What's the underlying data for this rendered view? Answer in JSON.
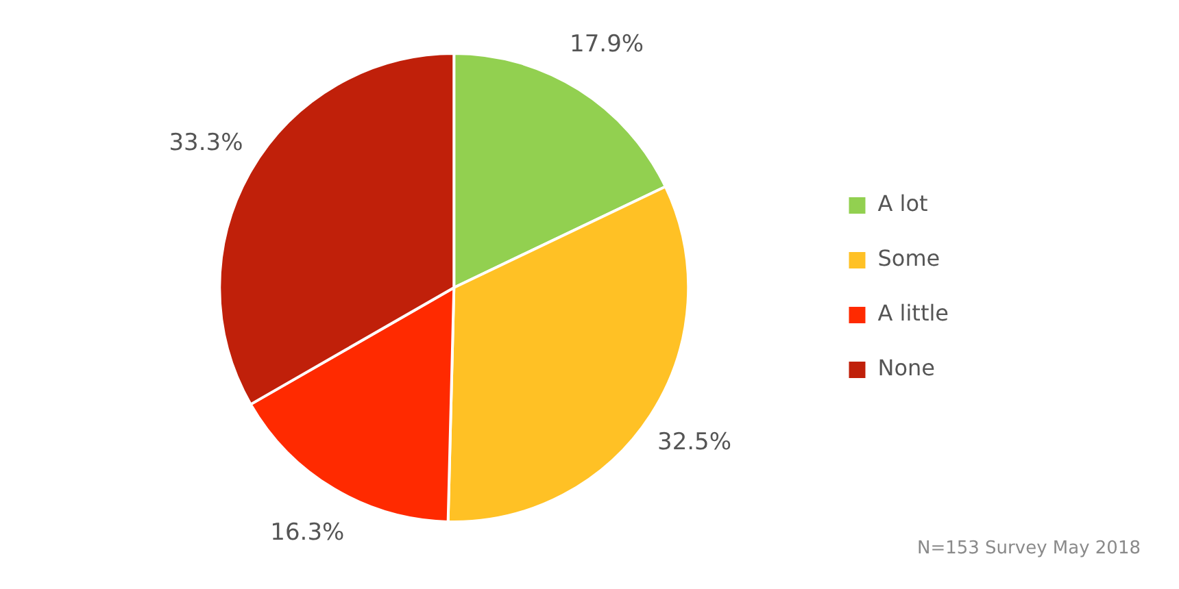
{
  "chart_data": {
    "type": "pie",
    "categories": [
      "A lot",
      "Some",
      "A little",
      "None"
    ],
    "values": [
      17.9,
      32.5,
      16.3,
      33.3
    ],
    "value_labels": [
      "17.9%",
      "32.5%",
      "16.3%",
      "33.3%"
    ],
    "colors": [
      "#92d050",
      "#ffc125",
      "#ff2a00",
      "#c0200a"
    ],
    "legend": "right",
    "annotations": [
      "N=153 Survey May 2018"
    ]
  }
}
